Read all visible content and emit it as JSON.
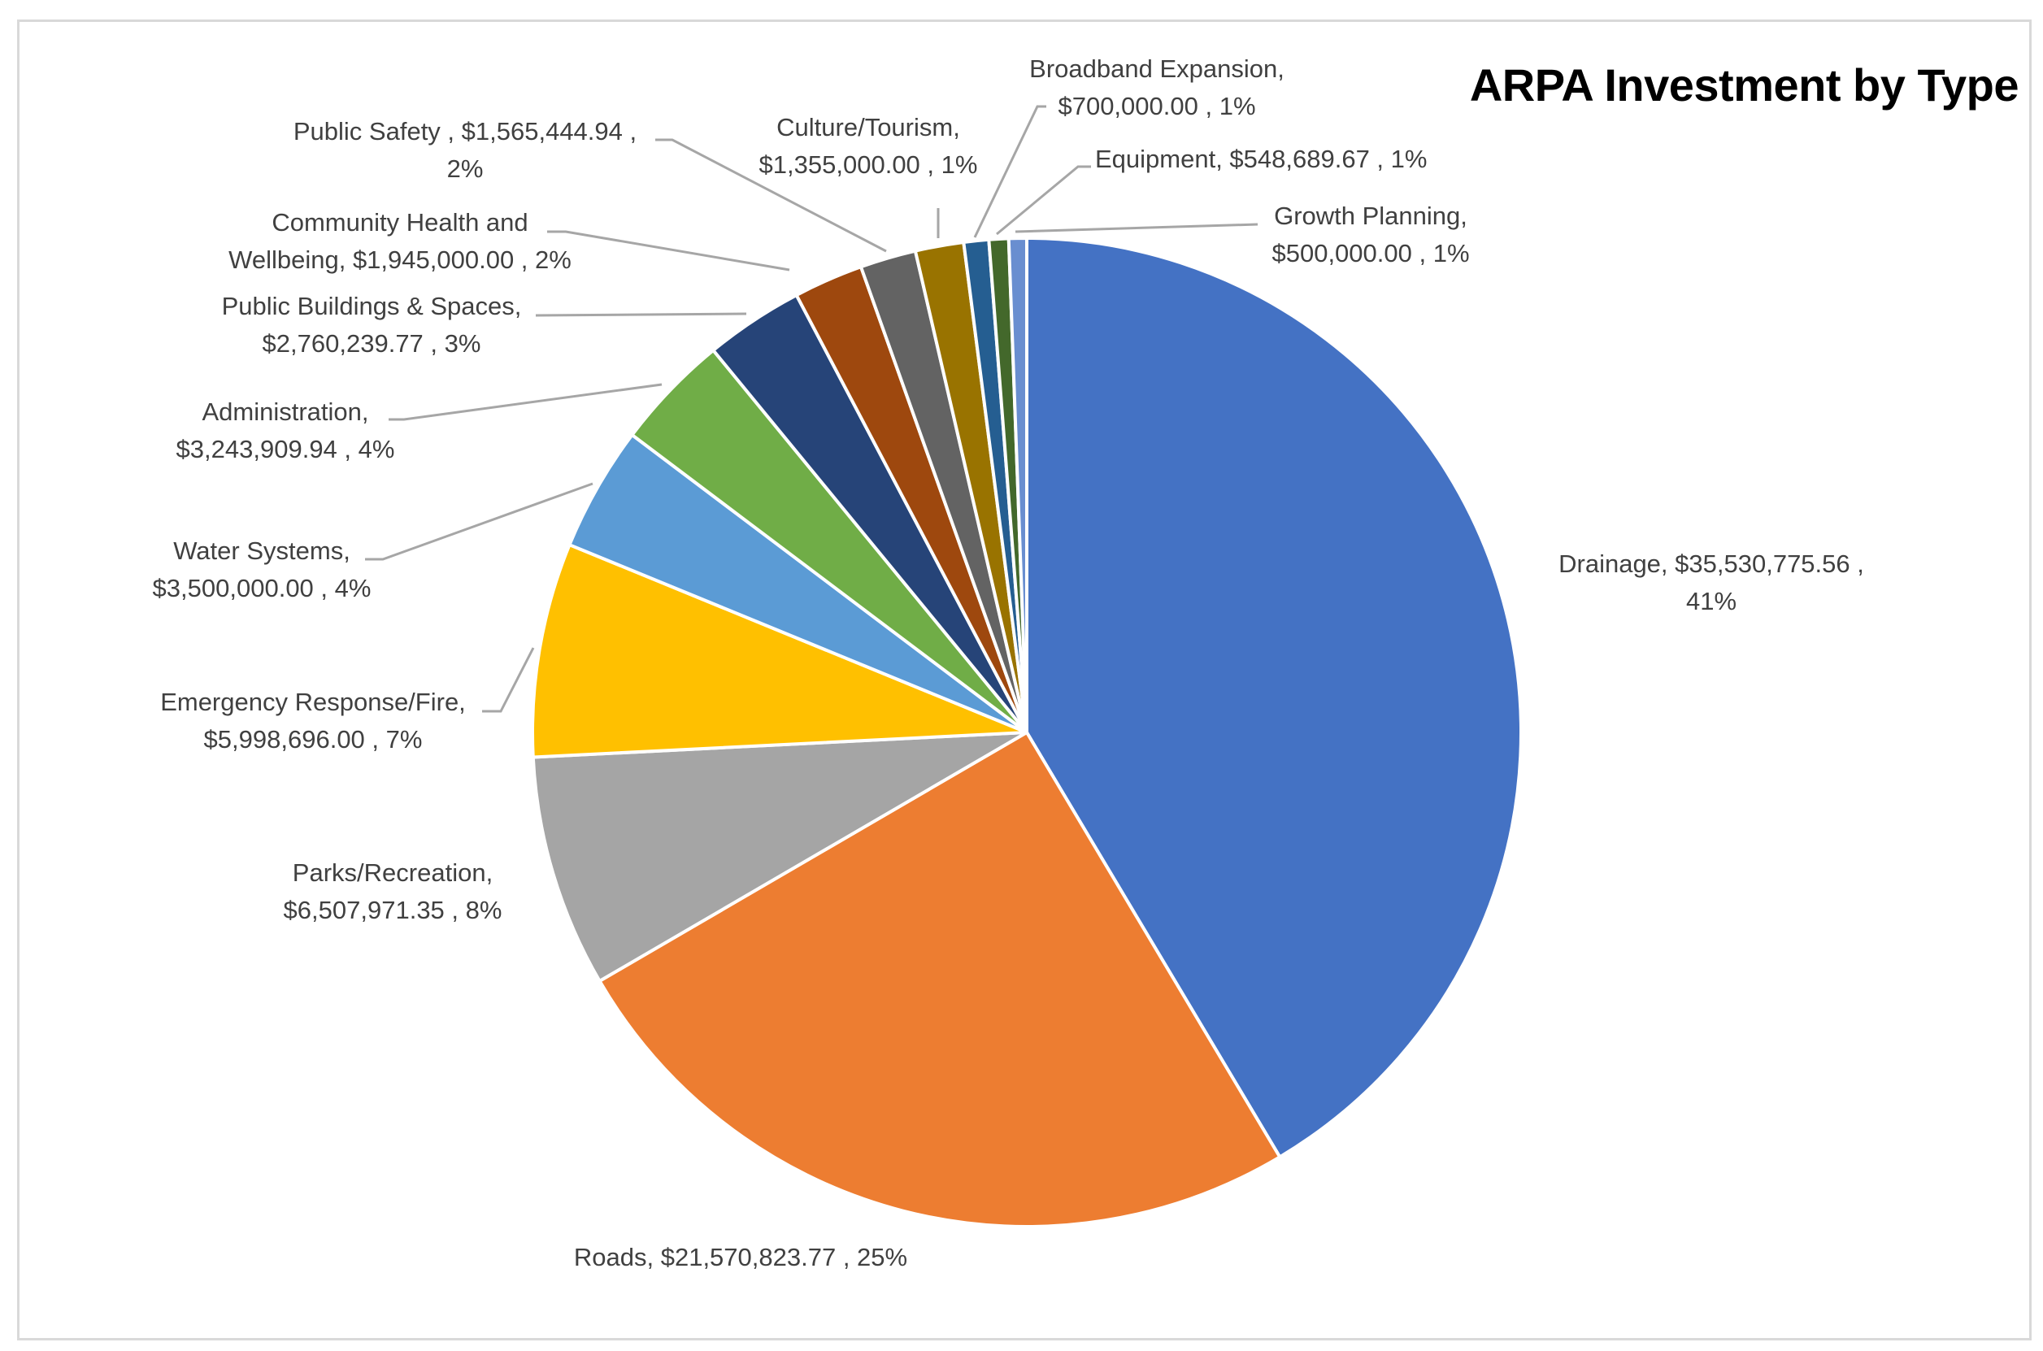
{
  "chart_data": {
    "type": "pie",
    "title": "ARPA Investment by Type",
    "start_angle": "12 o'clock",
    "direction": "clockwise",
    "legend": "none",
    "slices": [
      {
        "label": "Drainage",
        "value": 35530775.56,
        "value_text": "$35,530,775.56",
        "percent": "41%",
        "color": "#4472C4"
      },
      {
        "label": "Roads",
        "value": 21570823.77,
        "value_text": "$21,570,823.77",
        "percent": "25%",
        "color": "#ED7D31"
      },
      {
        "label": "Parks/Recreation",
        "value": 6507971.35,
        "value_text": "$6,507,971.35",
        "percent": "8%",
        "color": "#A5A5A5"
      },
      {
        "label": "Emergency Response/Fire",
        "value": 5998696.0,
        "value_text": "$5,998,696.00",
        "percent": "7%",
        "color": "#FFC000"
      },
      {
        "label": "Water Systems",
        "value": 3500000.0,
        "value_text": "$3,500,000.00",
        "percent": "4%",
        "color": "#5B9BD5"
      },
      {
        "label": "Administration",
        "value": 3243909.94,
        "value_text": "$3,243,909.94",
        "percent": "4%",
        "color": "#70AD47"
      },
      {
        "label": "Public Buildings & Spaces",
        "value": 2760239.77,
        "value_text": "$2,760,239.77",
        "percent": "3%",
        "color": "#264478"
      },
      {
        "label": "Community Health and Wellbeing",
        "value": 1945000.0,
        "value_text": "$1,945,000.00",
        "percent": "2%",
        "color": "#9E480E"
      },
      {
        "label": "Public Safety",
        "value": 1565444.94,
        "value_text": "$1,565,444.94",
        "percent": "2%",
        "color": "#636363"
      },
      {
        "label": "Culture/Tourism",
        "value": 1355000.0,
        "value_text": "$1,355,000.00",
        "percent": "1%",
        "color": "#997300"
      },
      {
        "label": "Broadband Expansion",
        "value": 700000.0,
        "value_text": "$700,000.00",
        "percent": "1%",
        "color": "#255E91"
      },
      {
        "label": "Equipment",
        "value": 548689.67,
        "value_text": "$548,689.67",
        "percent": "1%",
        "color": "#43682B"
      },
      {
        "label": "Growth Planning",
        "value": 500000.0,
        "value_text": "$500,000.00",
        "percent": "1%",
        "color": "#698ED0"
      }
    ],
    "data_labels": [
      {
        "line1": "Drainage,  $35,530,775.56 ,",
        "line2": "41%"
      },
      {
        "line1": "Roads,  $21,570,823.77 , 25%",
        "line2": ""
      },
      {
        "line1": "Parks/Recreation,",
        "line2": "$6,507,971.35 , 8%"
      },
      {
        "line1": "Emergency Response/Fire,",
        "line2": "$5,998,696.00 , 7%"
      },
      {
        "line1": "Water Systems,",
        "line2": "$3,500,000.00 , 4%"
      },
      {
        "line1": "Administration,",
        "line2": "$3,243,909.94 , 4%"
      },
      {
        "line1": "Public Buildings & Spaces,",
        "line2": "$2,760,239.77 , 3%"
      },
      {
        "line1": "Community Health and",
        "line2": "Wellbeing,  $1,945,000.00 , 2%"
      },
      {
        "line1": "Public Safety ,  $1,565,444.94 ,",
        "line2": "2%"
      },
      {
        "line1": "Culture/Tourism,",
        "line2": "$1,355,000.00 , 1%"
      },
      {
        "line1": "Broadband Expansion,",
        "line2": "$700,000.00 , 1%"
      },
      {
        "line1": "Equipment,  $548,689.67 , 1%",
        "line2": ""
      },
      {
        "line1": "Growth Planning,",
        "line2": "$500,000.00 , 1%"
      }
    ]
  }
}
